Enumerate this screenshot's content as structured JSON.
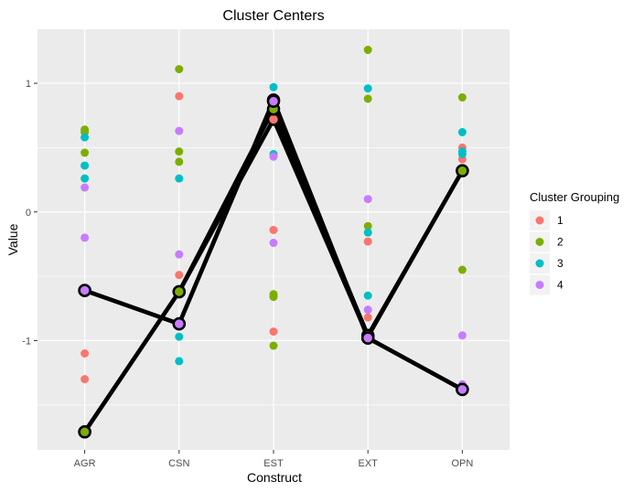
{
  "chart_data": {
    "type": "scatter",
    "title": "Cluster Centers",
    "xlabel": "Construct",
    "ylabel": "Value",
    "categories": [
      "AGR",
      "CSN",
      "EST",
      "EXT",
      "OPN"
    ],
    "ylim": [
      -1.85,
      1.42
    ],
    "yticks": [
      -1,
      0,
      1
    ],
    "grid": true,
    "legend": {
      "title": "Cluster Grouping",
      "position": "right",
      "entries": [
        "1",
        "2",
        "3",
        "4"
      ]
    },
    "colors": {
      "1": "#F8766D",
      "2": "#7CAE00",
      "3": "#00BFC4",
      "4": "#C77CFF",
      "panel": "#EBEBEB",
      "centerline": "#000000"
    },
    "points": [
      {
        "group": "1",
        "x": "AGR",
        "y": -1.1
      },
      {
        "group": "1",
        "x": "AGR",
        "y": -1.3
      },
      {
        "group": "2",
        "x": "AGR",
        "y": 0.64
      },
      {
        "group": "2",
        "x": "AGR",
        "y": 0.62
      },
      {
        "group": "2",
        "x": "AGR",
        "y": 0.46
      },
      {
        "group": "3",
        "x": "AGR",
        "y": 0.58
      },
      {
        "group": "3",
        "x": "AGR",
        "y": 0.36
      },
      {
        "group": "3",
        "x": "AGR",
        "y": 0.26
      },
      {
        "group": "4",
        "x": "AGR",
        "y": 0.19
      },
      {
        "group": "4",
        "x": "AGR",
        "y": -0.2
      },
      {
        "group": "1",
        "x": "CSN",
        "y": 0.9
      },
      {
        "group": "1",
        "x": "CSN",
        "y": -0.49
      },
      {
        "group": "2",
        "x": "CSN",
        "y": 1.11
      },
      {
        "group": "2",
        "x": "CSN",
        "y": 0.47
      },
      {
        "group": "2",
        "x": "CSN",
        "y": 0.39
      },
      {
        "group": "3",
        "x": "CSN",
        "y": 0.26
      },
      {
        "group": "3",
        "x": "CSN",
        "y": -0.97
      },
      {
        "group": "3",
        "x": "CSN",
        "y": -1.16
      },
      {
        "group": "4",
        "x": "CSN",
        "y": 0.63
      },
      {
        "group": "4",
        "x": "CSN",
        "y": -0.33
      },
      {
        "group": "1",
        "x": "EST",
        "y": 0.72
      },
      {
        "group": "1",
        "x": "EST",
        "y": -0.14
      },
      {
        "group": "1",
        "x": "EST",
        "y": -0.93
      },
      {
        "group": "2",
        "x": "EST",
        "y": -0.64
      },
      {
        "group": "2",
        "x": "EST",
        "y": -0.66
      },
      {
        "group": "2",
        "x": "EST",
        "y": -1.04
      },
      {
        "group": "3",
        "x": "EST",
        "y": 0.97
      },
      {
        "group": "3",
        "x": "EST",
        "y": 0.8
      },
      {
        "group": "3",
        "x": "EST",
        "y": 0.45
      },
      {
        "group": "4",
        "x": "EST",
        "y": 0.43
      },
      {
        "group": "4",
        "x": "EST",
        "y": -0.24
      },
      {
        "group": "1",
        "x": "EXT",
        "y": -0.23
      },
      {
        "group": "1",
        "x": "EXT",
        "y": -0.82
      },
      {
        "group": "2",
        "x": "EXT",
        "y": 1.26
      },
      {
        "group": "2",
        "x": "EXT",
        "y": 0.88
      },
      {
        "group": "2",
        "x": "EXT",
        "y": -0.11
      },
      {
        "group": "3",
        "x": "EXT",
        "y": 0.96
      },
      {
        "group": "3",
        "x": "EXT",
        "y": -0.16
      },
      {
        "group": "3",
        "x": "EXT",
        "y": -0.65
      },
      {
        "group": "4",
        "x": "EXT",
        "y": 0.1
      },
      {
        "group": "4",
        "x": "EXT",
        "y": -0.76
      },
      {
        "group": "1",
        "x": "OPN",
        "y": 0.5
      },
      {
        "group": "1",
        "x": "OPN",
        "y": 0.41
      },
      {
        "group": "2",
        "x": "OPN",
        "y": 0.89
      },
      {
        "group": "2",
        "x": "OPN",
        "y": -0.45
      },
      {
        "group": "3",
        "x": "OPN",
        "y": 0.62
      },
      {
        "group": "3",
        "x": "OPN",
        "y": 0.47
      },
      {
        "group": "3",
        "x": "OPN",
        "y": 0.45
      },
      {
        "group": "4",
        "x": "OPN",
        "y": -0.96
      },
      {
        "group": "4",
        "x": "OPN",
        "y": -1.34
      }
    ],
    "centers": [
      {
        "group": "1",
        "values": [
          -1.71,
          -0.62,
          0.72,
          -0.97,
          0.32
        ]
      },
      {
        "group": "2",
        "values": [
          -1.71,
          -0.62,
          0.8,
          -0.96,
          0.32
        ]
      },
      {
        "group": "3",
        "values": [
          -0.61,
          -0.87,
          0.87,
          -0.98,
          -1.38
        ]
      },
      {
        "group": "4",
        "values": [
          -0.61,
          -0.87,
          0.86,
          -0.98,
          -1.38
        ]
      }
    ]
  }
}
